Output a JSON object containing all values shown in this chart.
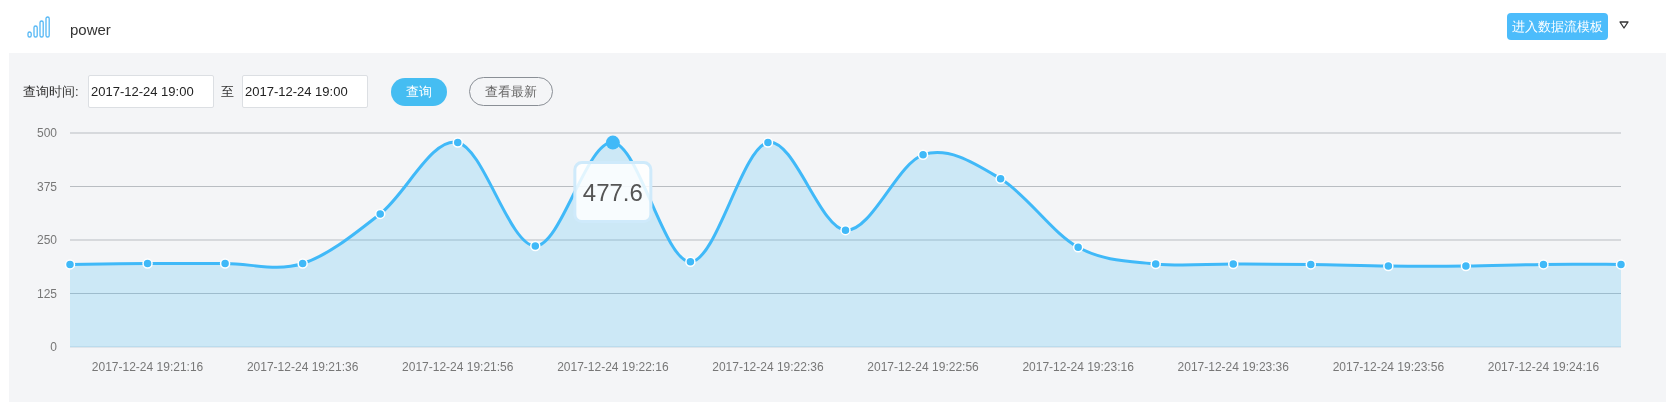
{
  "chart_data": {
    "type": "area",
    "title": "power",
    "categories": [
      null,
      "2017-12-24 19:21:16",
      null,
      "2017-12-24 19:21:36",
      null,
      "2017-12-24 19:21:56",
      null,
      "2017-12-24 19:22:16",
      null,
      "2017-12-24 19:22:36",
      null,
      "2017-12-24 19:22:56",
      null,
      "2017-12-24 19:23:16",
      null,
      "2017-12-24 19:23:36",
      null,
      "2017-12-24 19:23:56",
      null,
      "2017-12-24 19:24:16",
      null
    ],
    "series": [
      {
        "color": "#40b9f8",
        "values": [
          193,
          195,
          195,
          195,
          311,
          478,
          236,
          477.6,
          199,
          478,
          273,
          449,
          393,
          233,
          194,
          194,
          193,
          189,
          189,
          193,
          193
        ],
        "value_labels": [
          null,
          null,
          null,
          null,
          null,
          null,
          null,
          "477.6",
          null,
          null,
          null,
          null,
          null,
          null,
          null,
          null,
          null,
          null,
          null,
          null,
          null
        ]
      }
    ],
    "ylim": [
      0,
      500
    ],
    "yticks": [
      0,
      125,
      250,
      375,
      500
    ],
    "grid": "y",
    "marker": "circle",
    "line_style": "solid",
    "annotations": [
      "进入数据流模板",
      "查询时间:",
      "2017-12-24 19:00",
      "至",
      "2017-12-24 19:00",
      "查询",
      "查看最新"
    ]
  }
}
